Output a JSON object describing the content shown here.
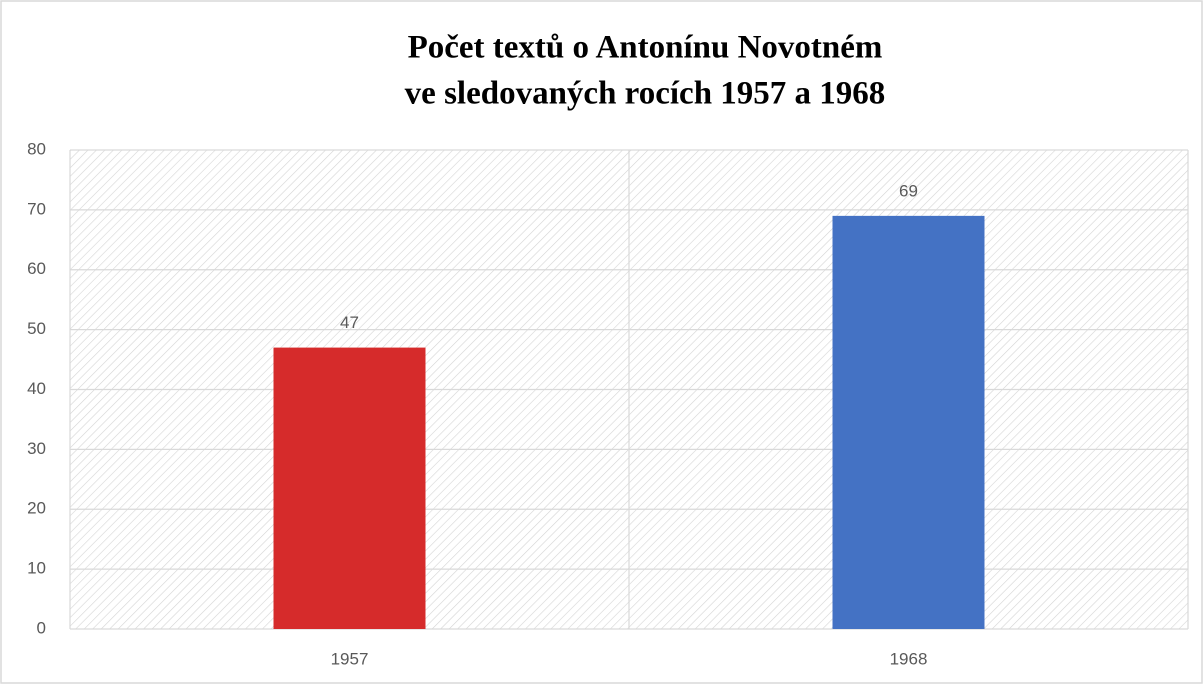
{
  "chart_data": {
    "type": "bar",
    "title": [
      "Počet textů o Antonínu Novotném",
      "ve sledovaných rocích 1957 a 1968"
    ],
    "categories": [
      "1957",
      "1968"
    ],
    "values": [
      47,
      69
    ],
    "colors": [
      "#d62b2b",
      "#4472c4"
    ],
    "ylim": [
      0,
      80
    ],
    "yticks": [
      0,
      10,
      20,
      30,
      40,
      50,
      60,
      70,
      80
    ],
    "grid": true,
    "data_labels": true
  }
}
